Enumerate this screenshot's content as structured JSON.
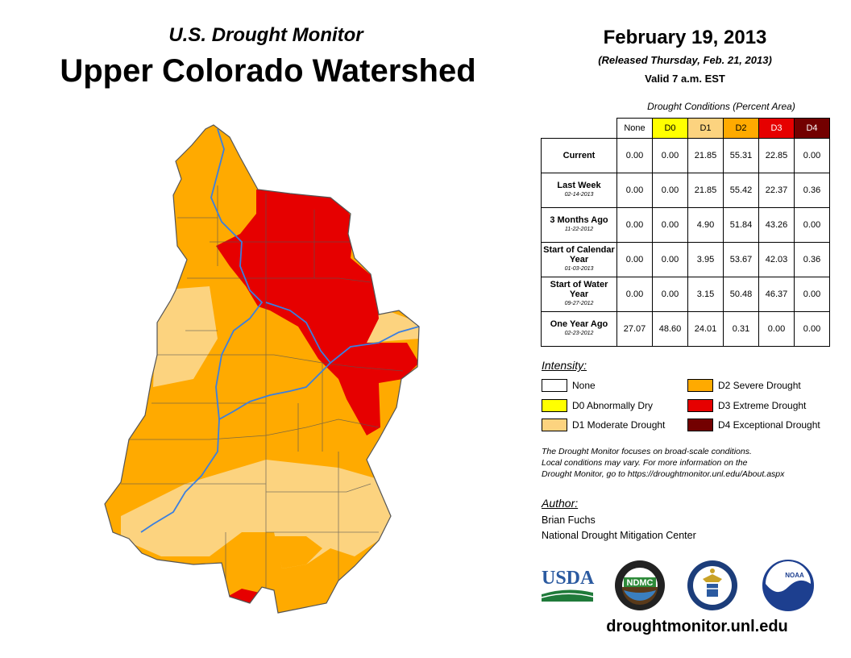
{
  "header": {
    "subtitle": "U.S. Drought Monitor",
    "title": "Upper Colorado Watershed",
    "date": "February 19, 2013",
    "released": "(Released Thursday, Feb. 21, 2013)",
    "valid": "Valid 7 a.m. EST"
  },
  "table": {
    "caption": "Drought Conditions (Percent Area)",
    "columns": [
      "None",
      "D0",
      "D1",
      "D2",
      "D3",
      "D4"
    ],
    "column_colors": [
      "#ffffff",
      "#ffff00",
      "#fcd37f",
      "#ffaa00",
      "#e60000",
      "#730000"
    ],
    "rows": [
      {
        "label": "Current",
        "sublabel": "",
        "values": [
          "0.00",
          "0.00",
          "21.85",
          "55.31",
          "22.85",
          "0.00"
        ]
      },
      {
        "label": "Last Week",
        "sublabel": "02-14-2013",
        "values": [
          "0.00",
          "0.00",
          "21.85",
          "55.42",
          "22.37",
          "0.36"
        ]
      },
      {
        "label": "3 Months Ago",
        "sublabel": "11-22-2012",
        "values": [
          "0.00",
          "0.00",
          "4.90",
          "51.84",
          "43.26",
          "0.00"
        ]
      },
      {
        "label": "Start of Calendar Year",
        "sublabel": "01-03-2013",
        "values": [
          "0.00",
          "0.00",
          "3.95",
          "53.67",
          "42.03",
          "0.36"
        ]
      },
      {
        "label": "Start of Water Year",
        "sublabel": "09-27-2012",
        "values": [
          "0.00",
          "0.00",
          "3.15",
          "50.48",
          "46.37",
          "0.00"
        ]
      },
      {
        "label": "One Year Ago",
        "sublabel": "02-23-2012",
        "values": [
          "27.07",
          "48.60",
          "24.01",
          "0.31",
          "0.00",
          "0.00"
        ]
      }
    ]
  },
  "legend": {
    "title": "Intensity:",
    "items": [
      {
        "label": "None",
        "color": "#ffffff"
      },
      {
        "label": "D0 Abnormally Dry",
        "color": "#ffff00"
      },
      {
        "label": "D1 Moderate Drought",
        "color": "#fcd37f"
      },
      {
        "label": "D2 Severe Drought",
        "color": "#ffaa00"
      },
      {
        "label": "D3 Extreme Drought",
        "color": "#e60000"
      },
      {
        "label": "D4 Exceptional Drought",
        "color": "#730000"
      }
    ]
  },
  "note": {
    "line1": "The Drought Monitor focuses on broad-scale conditions.",
    "line2": "Local conditions may vary. For more information on the",
    "line3": "Drought Monitor, go to https://droughtmonitor.unl.edu/About.aspx"
  },
  "author": {
    "title": "Author:",
    "name": "Brian Fuchs",
    "org": "National Drought Mitigation Center"
  },
  "logos": {
    "usda": "USDA",
    "ndmc": "NDMC",
    "noaa": "NOAA"
  },
  "footer": {
    "url": "droughtmonitor.unl.edu"
  }
}
